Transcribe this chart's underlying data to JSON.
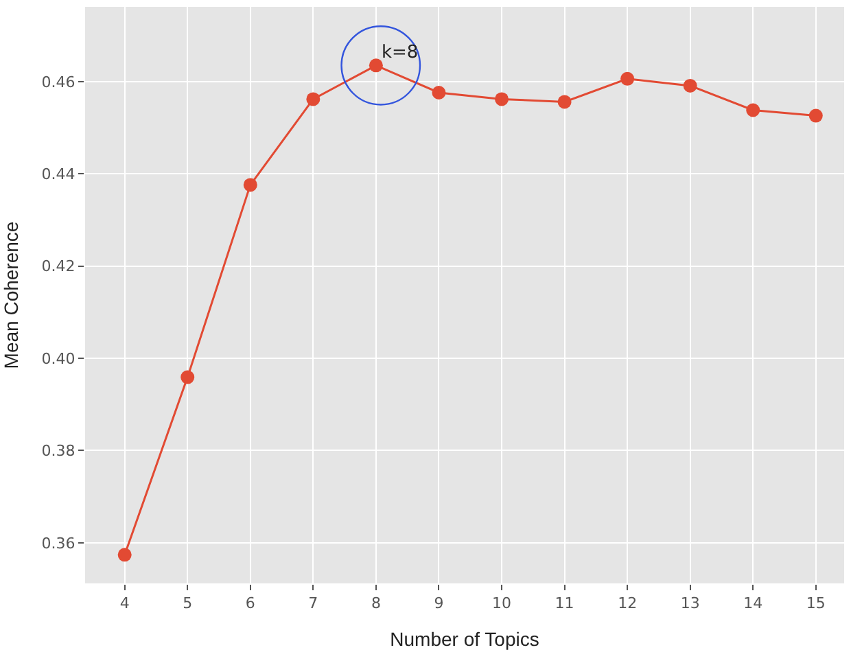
{
  "chart_data": {
    "type": "line",
    "xlabel": "Number of Topics",
    "ylabel": "Mean Coherence",
    "x": [
      4,
      5,
      6,
      7,
      8,
      9,
      10,
      11,
      12,
      13,
      14,
      15
    ],
    "series": [
      {
        "color": "#e24a33",
        "values": [
          0.3574,
          0.3959,
          0.4376,
          0.4562,
          0.4635,
          0.4576,
          0.4562,
          0.4556,
          0.4606,
          0.4591,
          0.4538,
          0.4526
        ]
      }
    ],
    "xlim": [
      3.37,
      15.45
    ],
    "xticks": [
      4,
      5,
      6,
      7,
      8,
      9,
      10,
      11,
      12,
      13,
      14,
      15
    ],
    "ylim": [
      0.3512,
      0.4762
    ],
    "yticks": [
      0.36,
      0.38,
      {
        "value": 0.4,
        "label": "0.40"
      },
      0.42,
      0.44,
      0.46
    ],
    "annotations": [
      {
        "text": "k=8",
        "x": 8,
        "y": 0.4635
      }
    ],
    "grid": true,
    "marker": "circle",
    "line_style": "solid"
  }
}
